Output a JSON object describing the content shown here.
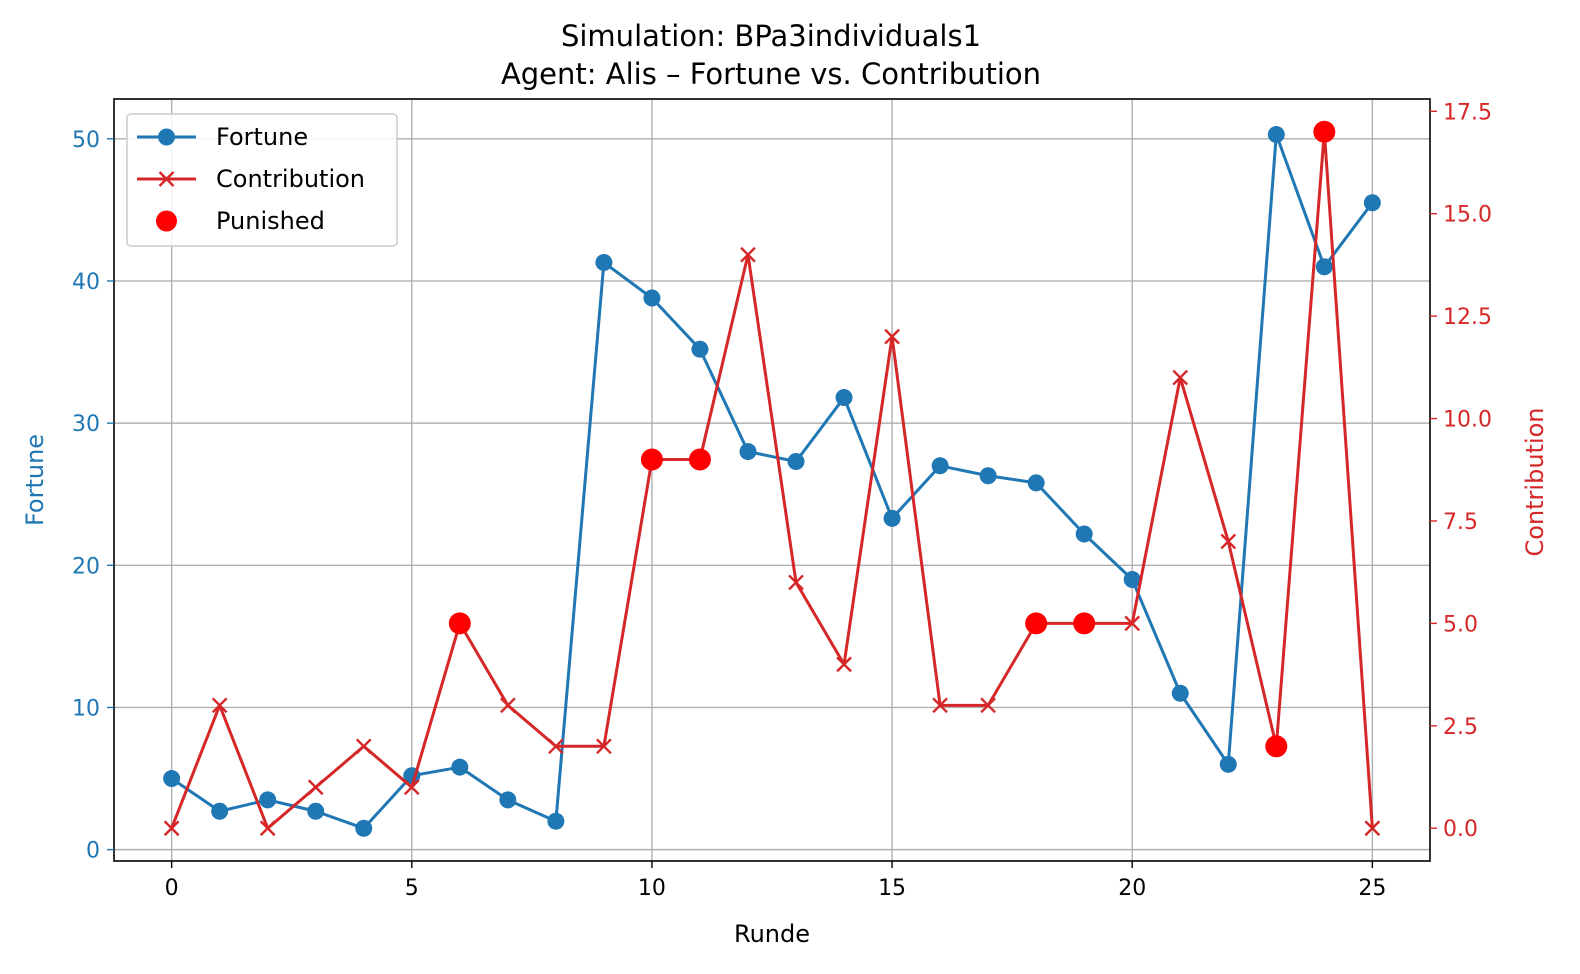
{
  "chart_data": {
    "type": "line",
    "title_line1": "Simulation: BPa3individuals1",
    "title_line2": "Agent: Alis – Fortune vs. Contribution",
    "xlabel": "Runde",
    "ylabel_left": "Fortune",
    "ylabel_right": "Contribution",
    "xlim": [
      -1.2,
      26.2
    ],
    "ylim_left": [
      -0.8,
      52.8
    ],
    "ylim_right": [
      -0.8,
      17.8
    ],
    "x_ticks": [
      0,
      5,
      10,
      15,
      20,
      25
    ],
    "x_tick_labels": [
      "0",
      "5",
      "10",
      "15",
      "20",
      "25"
    ],
    "left_ticks": [
      0,
      10,
      20,
      30,
      40,
      50
    ],
    "left_tick_labels": [
      "0",
      "10",
      "20",
      "30",
      "40",
      "50"
    ],
    "right_ticks": [
      0,
      2.5,
      5,
      7.5,
      10,
      12.5,
      15,
      17.5
    ],
    "right_tick_labels": [
      "0.0",
      "2.5",
      "5.0",
      "7.5",
      "10.0",
      "12.5",
      "15.0",
      "17.5"
    ],
    "grid": true,
    "legend_position": "upper left",
    "colors": {
      "fortune": "#1f77b4",
      "contribution": "#d62728",
      "punished": "#ff0000"
    },
    "series": [
      {
        "name": "Fortune",
        "axis": "left",
        "marker": "circle",
        "x": [
          0,
          1,
          2,
          3,
          4,
          5,
          6,
          7,
          8,
          9,
          10,
          11,
          12,
          13,
          14,
          15,
          16,
          17,
          18,
          19,
          20,
          21,
          22,
          23,
          24,
          25
        ],
        "values": [
          5.0,
          2.7,
          3.5,
          2.7,
          1.5,
          5.2,
          5.8,
          3.5,
          2.0,
          41.3,
          38.8,
          35.2,
          28.0,
          27.3,
          31.8,
          23.3,
          27.0,
          26.3,
          25.8,
          22.2,
          19.0,
          11.0,
          6.0,
          50.3,
          41.0,
          45.5
        ]
      },
      {
        "name": "Contribution",
        "axis": "right",
        "marker": "x",
        "x": [
          0,
          1,
          2,
          3,
          4,
          5,
          6,
          7,
          8,
          9,
          10,
          11,
          12,
          13,
          14,
          15,
          16,
          17,
          18,
          19,
          20,
          21,
          22,
          23,
          24,
          25
        ],
        "values": [
          0,
          3,
          0,
          1,
          2,
          1,
          5,
          3,
          2,
          2,
          9,
          9,
          14,
          6,
          4,
          12,
          3,
          3,
          5,
          5,
          5,
          11,
          7,
          2,
          17,
          0
        ]
      },
      {
        "name": "Punished",
        "axis": "right",
        "marker": "dot",
        "x": [
          6,
          10,
          11,
          18,
          19,
          23,
          24
        ],
        "values": [
          5,
          9,
          9,
          5,
          5,
          2,
          17
        ]
      }
    ]
  }
}
